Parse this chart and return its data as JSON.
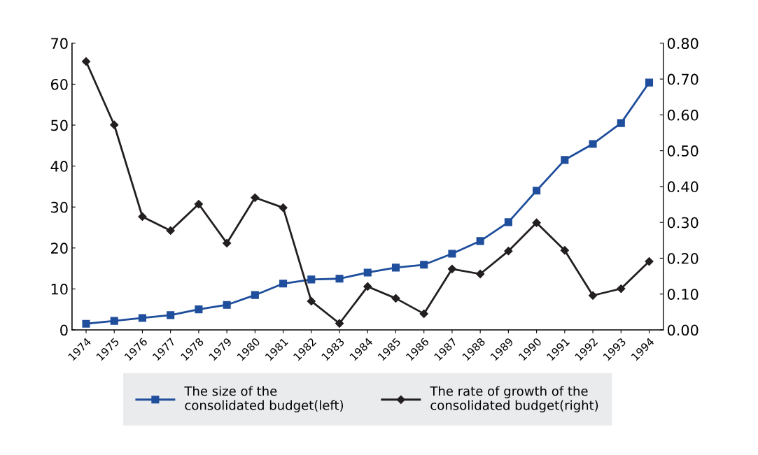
{
  "chart_data": {
    "type": "line",
    "categories": [
      "1974",
      "1975",
      "1976",
      "1977",
      "1978",
      "1979",
      "1980",
      "1981",
      "1982",
      "1983",
      "1984",
      "1985",
      "1986",
      "1987",
      "1988",
      "1989",
      "1990",
      "1991",
      "1992",
      "1993",
      "1994"
    ],
    "series": [
      {
        "name": "The size of the\nconsolidated budget(left)",
        "color": "#1f4e9c",
        "marker": "square",
        "values": [
          1.5,
          2.2,
          2.9,
          3.6,
          5.0,
          6.1,
          8.5,
          11.3,
          12.3,
          12.5,
          14.0,
          15.2,
          15.9,
          18.6,
          21.7,
          26.3,
          34.0,
          41.5,
          45.4,
          50.5,
          60.4
        ]
      },
      {
        "name": "The rate of growth of the\nconsolidated budget(right)",
        "color": "#231f20",
        "marker": "diamond",
        "axis": "y2",
        "values": [
          0.749,
          0.572,
          0.316,
          0.277,
          0.351,
          0.242,
          0.369,
          0.341,
          0.08,
          0.018,
          0.121,
          0.088,
          0.045,
          0.17,
          0.156,
          0.22,
          0.299,
          0.222,
          0.096,
          0.115,
          0.191
        ]
      }
    ],
    "ylim": [
      0,
      70
    ],
    "yticks": [
      0,
      10,
      20,
      30,
      40,
      50,
      60,
      70
    ],
    "y2lim": [
      0,
      0.8
    ],
    "y2ticks": [
      {
        "value": 0,
        "label": "0.00"
      },
      {
        "value": 0.1,
        "label": "0.10"
      },
      {
        "value": 0.2,
        "label": "0.20"
      },
      {
        "value": 0.3,
        "label": "0.30"
      },
      {
        "value": 0.4,
        "label": "0.40"
      },
      {
        "value": 0.5,
        "label": "0.50"
      },
      {
        "value": 0.6,
        "label": "0.60"
      },
      {
        "value": 0.7,
        "label": "0.70"
      },
      {
        "value": 0.8,
        "label": "0.80"
      }
    ],
    "grid": false,
    "legend": "bottom",
    "line_style": "solid"
  }
}
